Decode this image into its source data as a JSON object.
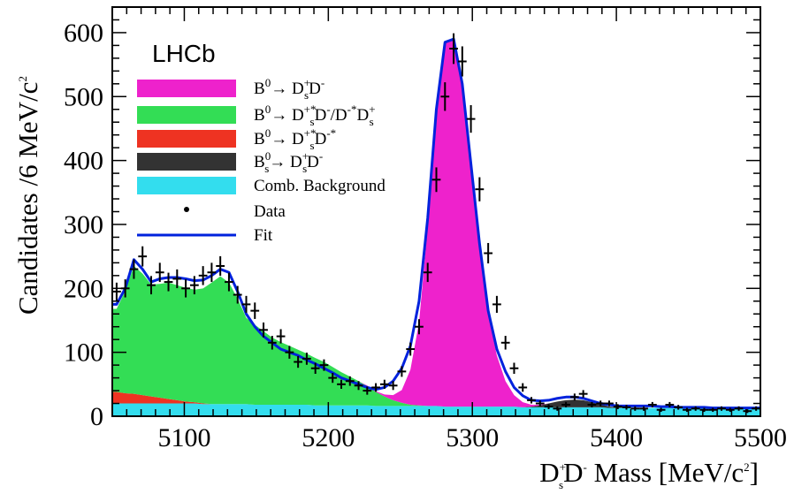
{
  "chart_data": {
    "type": "line",
    "title": "",
    "experiment_label": "LHCb",
    "xlabel": {
      "pre": "D",
      "sup1": "+",
      "sub1": "s",
      "mid": "D",
      "sup2": "-",
      "post": " Mass [MeV/c",
      "sup3": "2",
      "end": "]"
    },
    "ylabel": {
      "pre": "Candidates /6 MeV/c",
      "sup": "2"
    },
    "xlim": [
      5050,
      5500
    ],
    "ylim": [
      0,
      640
    ],
    "x_ticks": [
      5100,
      5200,
      5300,
      5400,
      5500
    ],
    "y_ticks": [
      0,
      100,
      200,
      300,
      400,
      500,
      600
    ],
    "legend_position": "top-left",
    "legend": [
      {
        "key": "bd_dsd",
        "color": "#ee22cc",
        "kind": "fill",
        "parts": [
          [
            "B",
            "n"
          ],
          [
            "0",
            "sup"
          ],
          [
            "→ D",
            "n"
          ],
          [
            "+",
            "sup"
          ],
          [
            "s",
            "sub"
          ],
          [
            "D",
            "n"
          ],
          [
            "-",
            "sup"
          ]
        ]
      },
      {
        "key": "bd_dsstar",
        "color": "#33dd55",
        "kind": "fill",
        "parts": [
          [
            "B",
            "n"
          ],
          [
            "0",
            "sup"
          ],
          [
            "→ D",
            "n"
          ],
          [
            "+*",
            "sup"
          ],
          [
            "s",
            "sub"
          ],
          [
            "D",
            "n"
          ],
          [
            "-",
            "sup"
          ],
          [
            "/D",
            "n"
          ],
          [
            "-*",
            "sup"
          ],
          [
            "D",
            "n"
          ],
          [
            "+",
            "sup"
          ],
          [
            "s",
            "sub"
          ]
        ]
      },
      {
        "key": "bd_dsstar_dstar",
        "color": "#ee3322",
        "kind": "fill",
        "parts": [
          [
            "B",
            "n"
          ],
          [
            "0",
            "sup"
          ],
          [
            "→ D",
            "n"
          ],
          [
            "+*",
            "sup"
          ],
          [
            "s",
            "sub"
          ],
          [
            "D",
            "n"
          ],
          [
            "-*",
            "sup"
          ]
        ]
      },
      {
        "key": "bs_dsd",
        "color": "#333333",
        "kind": "fill",
        "parts": [
          [
            "B",
            "n"
          ],
          [
            "0",
            "sup"
          ],
          [
            "s",
            "sub"
          ],
          [
            "→ D",
            "n"
          ],
          [
            "+",
            "sup"
          ],
          [
            "s",
            "sub"
          ],
          [
            "D",
            "n"
          ],
          [
            "-",
            "sup"
          ]
        ]
      },
      {
        "key": "comb",
        "color": "#33ddee",
        "kind": "fill",
        "parts": [
          [
            "Comb. Background",
            "n"
          ]
        ]
      },
      {
        "key": "data",
        "color": "#000000",
        "kind": "point",
        "parts": [
          [
            "Data",
            "n"
          ]
        ]
      },
      {
        "key": "fit",
        "color": "#0022dd",
        "kind": "line",
        "parts": [
          [
            "Fit",
            "n"
          ]
        ]
      }
    ],
    "x_bins": [
      5053,
      5059,
      5065,
      5071,
      5077,
      5083,
      5089,
      5095,
      5101,
      5107,
      5113,
      5119,
      5125,
      5131,
      5137,
      5143,
      5149,
      5155,
      5161,
      5167,
      5173,
      5179,
      5185,
      5191,
      5197,
      5203,
      5209,
      5215,
      5221,
      5227,
      5233,
      5239,
      5245,
      5251,
      5257,
      5263,
      5269,
      5275,
      5281,
      5287,
      5293,
      5299,
      5305,
      5311,
      5317,
      5323,
      5329,
      5335,
      5341,
      5347,
      5353,
      5359,
      5365,
      5371,
      5377,
      5383,
      5389,
      5395,
      5401,
      5407,
      5413,
      5419,
      5425,
      5431,
      5437,
      5443,
      5449,
      5455,
      5461,
      5467,
      5473,
      5479,
      5485,
      5491,
      5497
    ],
    "series": [
      {
        "name": "Data",
        "values": [
          195,
          200,
          230,
          250,
          205,
          225,
          210,
          215,
          200,
          205,
          220,
          225,
          235,
          210,
          190,
          175,
          165,
          135,
          115,
          125,
          100,
          85,
          90,
          75,
          80,
          60,
          50,
          55,
          48,
          40,
          45,
          50,
          48,
          70,
          105,
          140,
          225,
          370,
          500,
          575,
          555,
          465,
          355,
          255,
          175,
          115,
          75,
          45,
          25,
          20,
          15,
          12,
          18,
          30,
          35,
          18,
          20,
          20,
          15,
          14,
          12,
          12,
          18,
          10,
          18,
          14,
          10,
          12,
          10,
          10,
          12,
          10,
          12,
          8,
          12
        ]
      },
      {
        "name": "Fit",
        "values": [
          175,
          200,
          245,
          230,
          210,
          215,
          217,
          217,
          215,
          212,
          213,
          220,
          230,
          225,
          195,
          160,
          140,
          125,
          115,
          105,
          100,
          95,
          88,
          82,
          75,
          68,
          60,
          55,
          50,
          45,
          42,
          45,
          55,
          75,
          110,
          180,
          310,
          480,
          585,
          590,
          520,
          395,
          270,
          165,
          105,
          70,
          45,
          32,
          25,
          24,
          25,
          28,
          30,
          30,
          28,
          24,
          20,
          18,
          16,
          16,
          16,
          16,
          16,
          15,
          15,
          14,
          14,
          14,
          14,
          13,
          13,
          13,
          13,
          13,
          13
        ]
      },
      {
        "name": "B0→DsD",
        "values": [
          0,
          0,
          0,
          0,
          0,
          0,
          0,
          0,
          0,
          0,
          0,
          0,
          0,
          0,
          0,
          0,
          0,
          0,
          0,
          0,
          0,
          0,
          0,
          0,
          0,
          0,
          0,
          0,
          0,
          1,
          1,
          3,
          8,
          20,
          55,
          130,
          280,
          460,
          570,
          575,
          505,
          380,
          250,
          145,
          80,
          40,
          18,
          8,
          3,
          1,
          0,
          0,
          0,
          0,
          0,
          0,
          0,
          0,
          0,
          0,
          0,
          0,
          0,
          0,
          0,
          0,
          0,
          0,
          0,
          0,
          0,
          0,
          0,
          0,
          0
        ]
      },
      {
        "name": "B0→Ds*D/D*Ds",
        "values": [
          130,
          160,
          200,
          190,
          175,
          178,
          182,
          180,
          178,
          176,
          180,
          190,
          200,
          190,
          165,
          135,
          125,
          115,
          105,
          98,
          92,
          86,
          80,
          74,
          68,
          60,
          52,
          45,
          38,
          30,
          22,
          15,
          9,
          5,
          2,
          1,
          0,
          0,
          0,
          0,
          0,
          0,
          0,
          0,
          0,
          0,
          0,
          0,
          0,
          0,
          0,
          0,
          0,
          0,
          0,
          0,
          0,
          0,
          0,
          0,
          0,
          0,
          0,
          0,
          0,
          0,
          0,
          0,
          0,
          0,
          0,
          0,
          0,
          0,
          0
        ]
      },
      {
        "name": "B0→Ds*D*",
        "values": [
          18,
          16,
          15,
          13,
          11,
          9,
          7,
          5,
          3,
          2,
          1,
          0,
          0,
          0,
          0,
          0,
          0,
          0,
          0,
          0,
          0,
          0,
          0,
          0,
          0,
          0,
          0,
          0,
          0,
          0,
          0,
          0,
          0,
          0,
          0,
          0,
          0,
          0,
          0,
          0,
          0,
          0,
          0,
          0,
          0,
          0,
          0,
          0,
          0,
          0,
          0,
          0,
          0,
          0,
          0,
          0,
          0,
          0,
          0,
          0,
          0,
          0,
          0,
          0,
          0,
          0,
          0,
          0,
          0,
          0,
          0,
          0,
          0,
          0,
          0
        ]
      },
      {
        "name": "Bs→DsD",
        "values": [
          0,
          0,
          0,
          0,
          0,
          0,
          0,
          0,
          0,
          0,
          0,
          0,
          0,
          0,
          0,
          0,
          0,
          0,
          0,
          0,
          0,
          0,
          0,
          0,
          0,
          0,
          0,
          0,
          0,
          0,
          0,
          0,
          0,
          0,
          0,
          0,
          0,
          0,
          0,
          0,
          0,
          0,
          0,
          0,
          0,
          0,
          0,
          0,
          1,
          3,
          6,
          9,
          11,
          12,
          11,
          8,
          5,
          2,
          1,
          0,
          0,
          0,
          0,
          0,
          0,
          0,
          0,
          0,
          0,
          0,
          0,
          0,
          0,
          0,
          0
        ]
      },
      {
        "name": "Comb. Background",
        "values": [
          20,
          20,
          20,
          20,
          20,
          20,
          20,
          20,
          20,
          20,
          19,
          19,
          19,
          19,
          19,
          19,
          18,
          18,
          18,
          18,
          18,
          18,
          18,
          17,
          17,
          17,
          17,
          17,
          17,
          17,
          16,
          16,
          16,
          16,
          16,
          16,
          16,
          16,
          15,
          15,
          15,
          15,
          15,
          15,
          15,
          15,
          15,
          14,
          14,
          14,
          14,
          14,
          14,
          14,
          14,
          14,
          14,
          13,
          13,
          13,
          13,
          13,
          13,
          13,
          13,
          13,
          13,
          13,
          13,
          12,
          12,
          12,
          12,
          12,
          12
        ]
      }
    ]
  }
}
